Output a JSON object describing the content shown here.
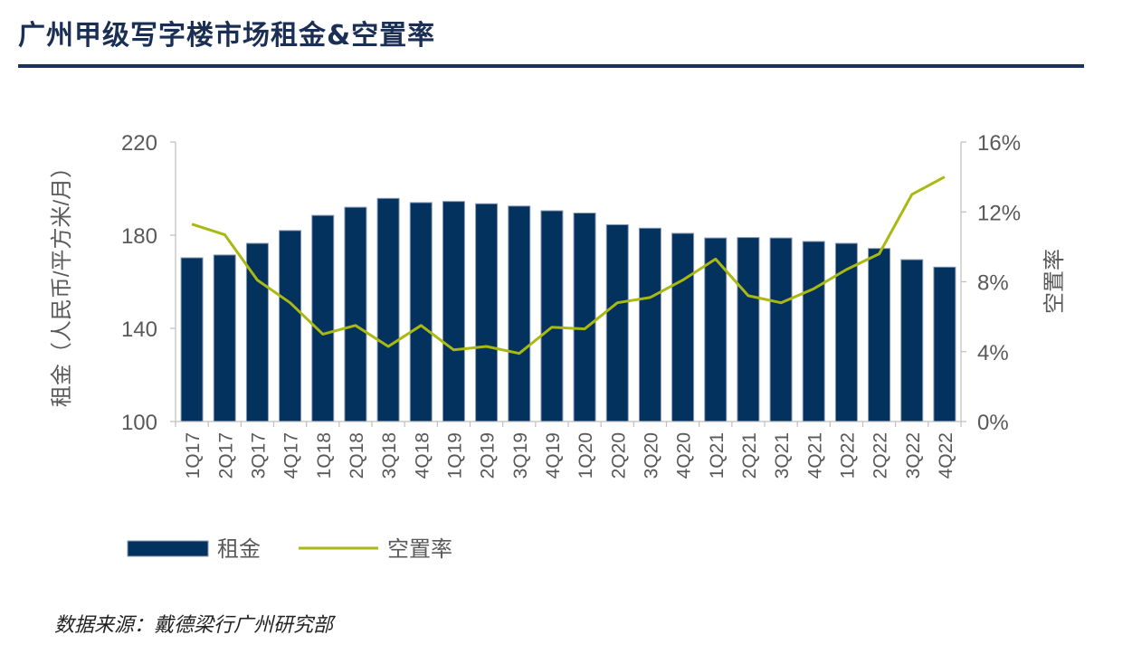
{
  "page": {
    "title": "广州甲级写字楼市场租金&空置率",
    "source": "数据来源：戴德梁行广州研究部"
  },
  "colors": {
    "bar": "#04325e",
    "bar_outline": "#8a9bb5",
    "line": "#a9b912",
    "title": "#1b2f55",
    "rule": "#1b3160",
    "axis_text": "#595959",
    "axis_line": "#bfbfbf"
  },
  "chart_data": {
    "type": "bar",
    "categories": [
      "1Q17",
      "2Q17",
      "3Q17",
      "4Q17",
      "1Q18",
      "2Q18",
      "3Q18",
      "4Q18",
      "1Q19",
      "2Q19",
      "3Q19",
      "4Q19",
      "1Q20",
      "2Q20",
      "3Q20",
      "4Q20",
      "1Q21",
      "2Q21",
      "3Q21",
      "4Q21",
      "1Q22",
      "2Q22",
      "3Q22",
      "4Q22"
    ],
    "series": [
      {
        "name": "租金",
        "type": "bar",
        "axis": "left",
        "values": [
          170.3,
          171.5,
          176.5,
          182.0,
          188.5,
          192.0,
          195.8,
          194.0,
          194.5,
          193.5,
          192.5,
          190.5,
          189.5,
          184.5,
          183.0,
          180.8,
          178.8,
          179.0,
          178.8,
          177.3,
          176.5,
          174.3,
          169.5,
          166.3
        ]
      },
      {
        "name": "空置率",
        "type": "line",
        "axis": "right",
        "values": [
          11.3,
          10.7,
          8.1,
          6.8,
          5.0,
          5.5,
          4.3,
          5.5,
          4.1,
          4.3,
          3.9,
          5.4,
          5.3,
          6.8,
          7.1,
          8.1,
          9.3,
          7.2,
          6.8,
          7.6,
          8.7,
          9.6,
          13.0,
          14.0
        ]
      }
    ],
    "left_axis": {
      "label": "租金（人民币/平方米/月）",
      "ticks": [
        "100",
        "140",
        "180",
        "220"
      ],
      "range": [
        100,
        220
      ]
    },
    "right_axis": {
      "label": "空置率",
      "ticks": [
        "0%",
        "4%",
        "8%",
        "12%",
        "16%"
      ],
      "range": [
        0,
        16
      ]
    },
    "legend": {
      "position": "bottom-left",
      "items": [
        "租金",
        "空置率"
      ]
    },
    "grid": false
  }
}
